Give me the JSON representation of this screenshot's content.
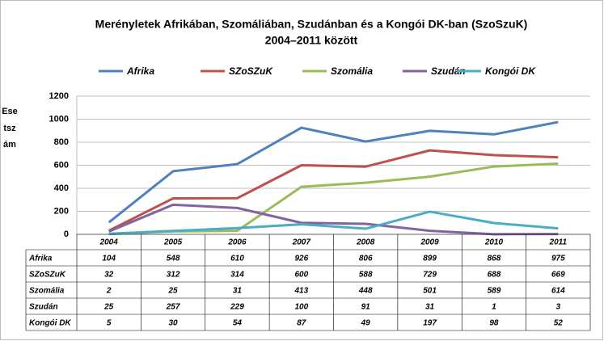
{
  "chart_data": {
    "type": "line",
    "title": [
      "Merényletek Afrikában, Szomáliában, Szudánban és a Kongói DK-ban (SzoSzuK)",
      "2004–2011 között"
    ],
    "y_label": "Esetszám",
    "categories": [
      "2004",
      "2005",
      "2006",
      "2007",
      "2008",
      "2009",
      "2010",
      "2011"
    ],
    "series": [
      {
        "name": "Afrika",
        "color": "#4f81bd",
        "values": [
          104,
          548,
          610,
          926,
          806,
          899,
          868,
          975
        ]
      },
      {
        "name": "SZoSZuK",
        "color": "#c0504d",
        "values": [
          32,
          312,
          314,
          600,
          588,
          729,
          688,
          669
        ]
      },
      {
        "name": "Szomália",
        "color": "#9bbb59",
        "values": [
          2,
          25,
          31,
          413,
          448,
          501,
          589,
          614
        ]
      },
      {
        "name": "Szudán",
        "color": "#8064a2",
        "values": [
          25,
          257,
          229,
          100,
          91,
          31,
          1,
          3
        ]
      },
      {
        "name": "Kongói DK",
        "color": "#4bacc6",
        "values": [
          5,
          30,
          54,
          87,
          49,
          197,
          98,
          52
        ]
      }
    ],
    "ylim": [
      0,
      1200
    ],
    "yticks": [
      0,
      200,
      400,
      600,
      800,
      1000,
      1200
    ],
    "grid": true,
    "legend": "top"
  }
}
